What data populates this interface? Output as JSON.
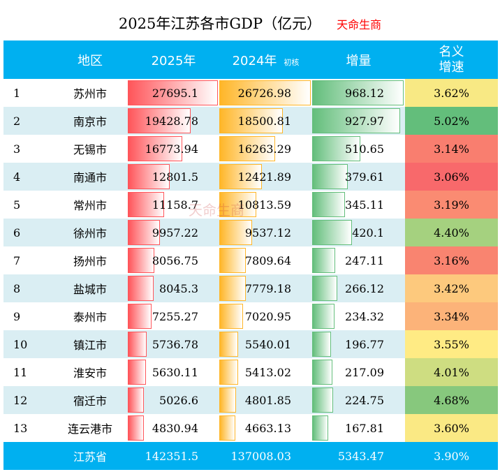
{
  "title": "2025年江苏各市GDP（亿元）",
  "brand": "天命生商",
  "headers": {
    "region": "地区",
    "y2025": "2025年",
    "y2024": "2024年",
    "y2024_note": "初核",
    "increase": "增量",
    "growth": "名义增速"
  },
  "rows": [
    {
      "rank": "1",
      "name": "苏州市",
      "y2025": "27695.1",
      "y2024": "26726.98",
      "inc": "968.12",
      "growth": "3.62%"
    },
    {
      "rank": "2",
      "name": "南京市",
      "y2025": "19428.78",
      "y2024": "18500.81",
      "inc": "927.97",
      "growth": "5.02%"
    },
    {
      "rank": "3",
      "name": "无锡市",
      "y2025": "16773.94",
      "y2024": "16263.29",
      "inc": "510.65",
      "growth": "3.14%"
    },
    {
      "rank": "4",
      "name": "南通市",
      "y2025": "12801.5",
      "y2024": "12421.89",
      "inc": "379.61",
      "growth": "3.06%"
    },
    {
      "rank": "5",
      "name": "常州市",
      "y2025": "11158.7",
      "y2024": "10813.59",
      "inc": "345.11",
      "growth": "3.19%"
    },
    {
      "rank": "6",
      "name": "徐州市",
      "y2025": "9957.22",
      "y2024": "9537.12",
      "inc": "420.1",
      "growth": "4.40%"
    },
    {
      "rank": "7",
      "name": "扬州市",
      "y2025": "8056.75",
      "y2024": "7809.64",
      "inc": "247.11",
      "growth": "3.16%"
    },
    {
      "rank": "8",
      "name": "盐城市",
      "y2025": "8045.3",
      "y2024": "7779.18",
      "inc": "266.12",
      "growth": "3.42%"
    },
    {
      "rank": "9",
      "name": "泰州市",
      "y2025": "7255.27",
      "y2024": "7020.95",
      "inc": "234.32",
      "growth": "3.34%"
    },
    {
      "rank": "10",
      "name": "镇江市",
      "y2025": "5736.78",
      "y2024": "5540.01",
      "inc": "196.77",
      "growth": "3.55%"
    },
    {
      "rank": "11",
      "name": "淮安市",
      "y2025": "5630.11",
      "y2024": "5413.02",
      "inc": "217.09",
      "growth": "4.01%"
    },
    {
      "rank": "12",
      "name": "宿迁市",
      "y2025": "5026.6",
      "y2024": "4801.85",
      "inc": "224.75",
      "growth": "4.68%"
    },
    {
      "rank": "13",
      "name": "连云港市",
      "y2025": "4830.94",
      "y2024": "4663.13",
      "inc": "167.81",
      "growth": "3.60%"
    }
  ],
  "total": {
    "name": "江苏省",
    "y2025": "142351.5",
    "y2024": "137008.03",
    "inc": "5343.47",
    "growth": "3.90%"
  },
  "colors": {
    "header": "#00B0F0",
    "stripe": "#DAEEF3",
    "bar2025": "#FF555A",
    "bar2024": "#FFB628",
    "barInc": "#63BE7B",
    "scaleLow": "#F8696B",
    "scaleMid": "#FFEB84",
    "scaleHigh": "#63BE7B"
  }
}
